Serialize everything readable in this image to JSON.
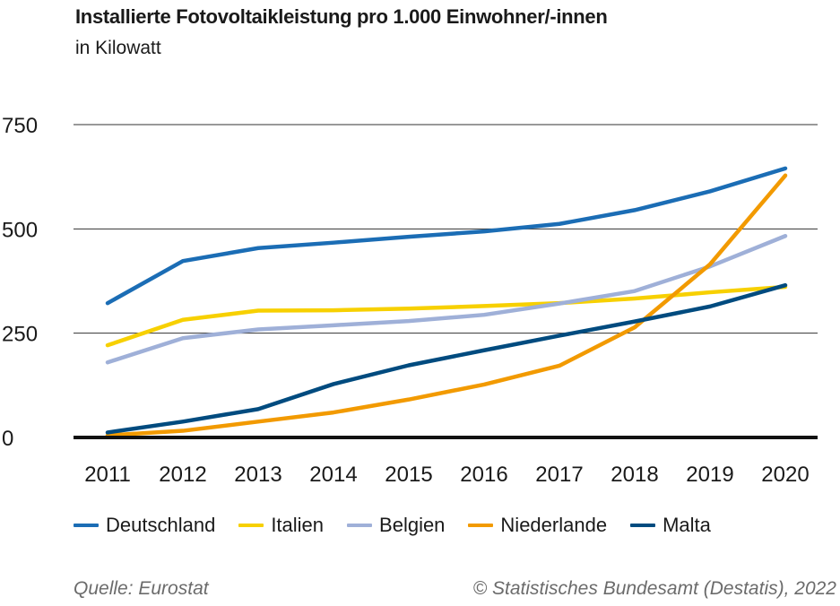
{
  "title": "Installierte Fotovoltaikleistung pro 1.000 Einwohner/-innen",
  "subtitle": "in Kilowatt",
  "source": "Quelle: Eurostat",
  "copyright": "© Statistisches Bundesamt (Destatis), 2022",
  "chart_data": {
    "type": "line",
    "title": "Installierte Fotovoltaikleistung pro 1.000 Einwohner/-innen",
    "subtitle": "in Kilowatt",
    "xlabel": "",
    "ylabel": "",
    "x": [
      "2011",
      "2012",
      "2013",
      "2014",
      "2015",
      "2016",
      "2017",
      "2018",
      "2019",
      "2020"
    ],
    "ylim": [
      0,
      750
    ],
    "yticks": [
      0,
      250,
      500,
      750
    ],
    "ytick_labels": [
      "0",
      "250",
      "500",
      "750"
    ],
    "grid": true,
    "legend_position": "bottom",
    "series": [
      {
        "name": "Deutschland",
        "color": "#1b6db5",
        "values": [
          322,
          423,
          454,
          467,
          481,
          494,
          512,
          545,
          590,
          645
        ]
      },
      {
        "name": "Italien",
        "color": "#f7d000",
        "values": [
          221,
          282,
          304,
          305,
          309,
          315,
          322,
          333,
          348,
          361
        ]
      },
      {
        "name": "Belgien",
        "color": "#9fb0d8",
        "values": [
          180,
          238,
          259,
          269,
          279,
          294,
          321,
          351,
          410,
          483
        ]
      },
      {
        "name": "Niederlande",
        "color": "#f29a00",
        "values": [
          5,
          16,
          38,
          60,
          91,
          127,
          172,
          264,
          415,
          628
        ]
      },
      {
        "name": "Malta",
        "color": "#004b7f",
        "values": [
          12,
          38,
          68,
          128,
          173,
          209,
          244,
          278,
          314,
          365
        ]
      }
    ]
  }
}
